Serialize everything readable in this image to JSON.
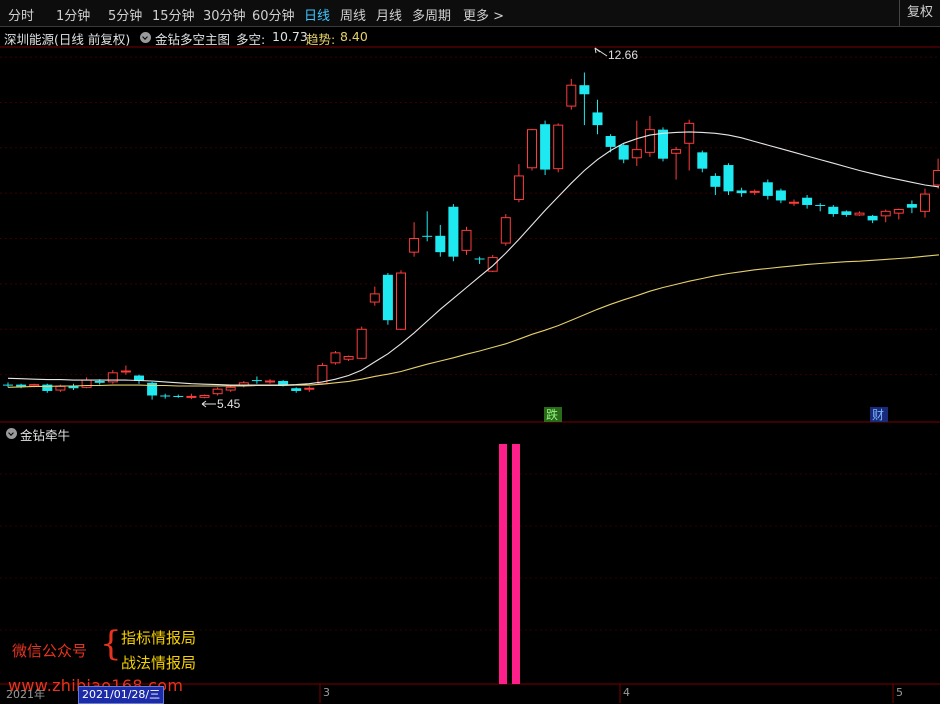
{
  "toolbar": {
    "items": [
      "分时",
      "1分钟",
      "5分钟",
      "15分钟",
      "30分钟",
      "60分钟",
      "日线",
      "周线",
      "月线",
      "多周期",
      "更多 >"
    ],
    "active_index": 6,
    "restore_label": "复权"
  },
  "info": {
    "stock": "深圳能源(日线 前复权)",
    "indicator": "金钻多空主图",
    "duokong_label": "多空:",
    "duokong_value": "10.73",
    "trend_label": "趋势:",
    "trend_value": "8.40"
  },
  "chart_data": {
    "type": "candlestick",
    "price_range": [
      5.0,
      13.2
    ],
    "high_label": "12.66",
    "low_label": "5.45",
    "markers": [
      "跌",
      "财"
    ],
    "candles": [
      [
        5.78,
        5.76,
        5.83,
        5.72
      ],
      [
        5.78,
        5.74,
        5.8,
        5.7
      ],
      [
        5.75,
        5.78,
        5.8,
        5.72
      ],
      [
        5.78,
        5.64,
        5.8,
        5.6
      ],
      [
        5.66,
        5.74,
        5.78,
        5.62
      ],
      [
        5.76,
        5.7,
        5.8,
        5.66
      ],
      [
        5.72,
        5.88,
        5.94,
        5.7
      ],
      [
        5.86,
        5.82,
        5.9,
        5.78
      ],
      [
        5.84,
        6.04,
        6.1,
        5.8
      ],
      [
        6.08,
        6.08,
        6.2,
        6.0
      ],
      [
        5.98,
        5.86,
        6.0,
        5.8
      ],
      [
        5.82,
        5.54,
        5.84,
        5.45
      ],
      [
        5.54,
        5.52,
        5.58,
        5.47
      ],
      [
        5.53,
        5.52,
        5.56,
        5.49
      ],
      [
        5.52,
        5.52,
        5.58,
        5.46
      ],
      [
        5.5,
        5.54,
        5.56,
        5.48
      ],
      [
        5.58,
        5.68,
        5.72,
        5.54
      ],
      [
        5.66,
        5.72,
        5.76,
        5.62
      ],
      [
        5.76,
        5.82,
        5.86,
        5.72
      ],
      [
        5.88,
        5.86,
        5.96,
        5.8
      ],
      [
        5.86,
        5.86,
        5.9,
        5.8
      ],
      [
        5.86,
        5.78,
        5.88,
        5.74
      ],
      [
        5.7,
        5.64,
        5.72,
        5.6
      ],
      [
        5.68,
        5.7,
        5.74,
        5.62
      ],
      [
        5.8,
        6.2,
        6.26,
        5.78
      ],
      [
        6.26,
        6.48,
        6.52,
        6.22
      ],
      [
        6.34,
        6.4,
        6.42,
        6.3
      ],
      [
        6.36,
        7.0,
        7.06,
        6.34
      ],
      [
        7.6,
        7.78,
        7.94,
        7.52
      ],
      [
        8.2,
        7.2,
        8.24,
        7.1
      ],
      [
        7.0,
        8.24,
        8.3,
        6.98
      ],
      [
        8.7,
        9.0,
        9.36,
        8.6
      ],
      [
        9.06,
        9.04,
        9.6,
        8.94
      ],
      [
        9.06,
        8.7,
        9.3,
        8.6
      ],
      [
        9.7,
        8.6,
        9.76,
        8.5
      ],
      [
        8.74,
        9.18,
        9.26,
        8.64
      ],
      [
        8.56,
        8.54,
        8.6,
        8.44
      ],
      [
        8.28,
        8.58,
        8.64,
        8.26
      ],
      [
        8.9,
        9.46,
        9.54,
        8.84
      ],
      [
        9.86,
        10.38,
        10.64,
        9.8
      ],
      [
        10.56,
        11.4,
        11.42,
        10.5
      ],
      [
        11.52,
        10.52,
        11.6,
        10.4
      ],
      [
        10.54,
        11.5,
        11.54,
        10.46
      ],
      [
        11.92,
        12.38,
        12.52,
        11.84
      ],
      [
        12.38,
        12.18,
        12.66,
        11.5
      ],
      [
        11.78,
        11.5,
        12.06,
        11.3
      ],
      [
        11.26,
        11.02,
        11.3,
        10.9
      ],
      [
        11.06,
        10.74,
        11.1,
        10.66
      ],
      [
        10.78,
        10.96,
        11.6,
        10.6
      ],
      [
        10.9,
        11.4,
        11.7,
        10.8
      ],
      [
        11.4,
        10.76,
        11.45,
        10.7
      ],
      [
        10.88,
        10.96,
        11.02,
        10.3
      ],
      [
        11.1,
        11.54,
        11.62,
        10.5
      ],
      [
        10.9,
        10.54,
        10.94,
        10.46
      ],
      [
        10.38,
        10.14,
        10.44,
        9.96
      ],
      [
        10.62,
        10.04,
        10.66,
        9.96
      ],
      [
        10.06,
        10.0,
        10.12,
        9.92
      ],
      [
        10.02,
        10.04,
        10.08,
        9.96
      ],
      [
        10.24,
        9.94,
        10.3,
        9.86
      ],
      [
        10.06,
        9.84,
        10.1,
        9.78
      ],
      [
        9.8,
        9.8,
        9.86,
        9.72
      ],
      [
        9.9,
        9.74,
        9.96,
        9.66
      ],
      [
        9.74,
        9.72,
        9.78,
        9.6
      ],
      [
        9.7,
        9.54,
        9.74,
        9.48
      ],
      [
        9.6,
        9.52,
        9.62,
        9.48
      ],
      [
        9.52,
        9.56,
        9.6,
        9.5
      ],
      [
        9.5,
        9.4,
        9.52,
        9.34
      ],
      [
        9.5,
        9.6,
        9.64,
        9.36
      ],
      [
        9.56,
        9.64,
        9.66,
        9.42
      ],
      [
        9.76,
        9.68,
        9.84,
        9.56
      ],
      [
        9.6,
        9.98,
        10.1,
        9.46
      ],
      [
        10.18,
        10.5,
        10.76,
        10.1
      ]
    ],
    "ma_long": [
      5.72,
      5.73,
      5.74,
      5.74,
      5.75,
      5.75,
      5.76,
      5.76,
      5.77,
      5.77,
      5.77,
      5.76,
      5.76,
      5.75,
      5.75,
      5.75,
      5.75,
      5.75,
      5.75,
      5.76,
      5.76,
      5.76,
      5.77,
      5.77,
      5.79,
      5.82,
      5.85,
      5.9,
      5.96,
      6.01,
      6.07,
      6.15,
      6.23,
      6.3,
      6.37,
      6.45,
      6.52,
      6.6,
      6.68,
      6.78,
      6.89,
      6.98,
      7.08,
      7.2,
      7.32,
      7.44,
      7.55,
      7.65,
      7.74,
      7.84,
      7.92,
      7.99,
      8.06,
      8.12,
      8.18,
      8.23,
      8.27,
      8.31,
      8.34,
      8.37,
      8.4,
      8.43,
      8.45,
      8.47,
      8.49,
      8.5,
      8.52,
      8.54,
      8.56,
      8.58,
      8.61,
      8.64
    ],
    "ma_short": [
      5.92,
      5.91,
      5.9,
      5.89,
      5.89,
      5.88,
      5.88,
      5.88,
      5.88,
      5.88,
      5.87,
      5.86,
      5.84,
      5.82,
      5.8,
      5.79,
      5.78,
      5.77,
      5.77,
      5.77,
      5.77,
      5.77,
      5.78,
      5.8,
      5.84,
      5.9,
      5.98,
      6.1,
      6.28,
      6.46,
      6.68,
      6.92,
      7.18,
      7.44,
      7.68,
      7.92,
      8.16,
      8.4,
      8.68,
      8.98,
      9.3,
      9.62,
      9.92,
      10.22,
      10.5,
      10.74,
      10.94,
      11.1,
      11.2,
      11.28,
      11.32,
      11.34,
      11.35,
      11.34,
      11.32,
      11.28,
      11.22,
      11.14,
      11.06,
      10.98,
      10.9,
      10.82,
      10.74,
      10.66,
      10.58,
      10.5,
      10.43,
      10.36,
      10.3,
      10.24,
      10.18,
      10.14
    ]
  },
  "indicator_panel": {
    "title": "金钻牵牛",
    "signals": [
      1,
      2
    ]
  },
  "watermark": {
    "left": "微信公众号",
    "right_line1": "指标情报局",
    "right_line2": "战法情报局",
    "url": "www.zhibiao168.com"
  },
  "axis": {
    "year": "2021年",
    "date": "2021/01/28/三",
    "m3": "3",
    "m4": "4",
    "m5": "5"
  },
  "colors": {
    "up": "#ff3b3b",
    "down": "#1ee8f0",
    "ma_short": "#e6e6e6",
    "ma_long": "#e4d06a",
    "signal": "#ff1f8a"
  }
}
